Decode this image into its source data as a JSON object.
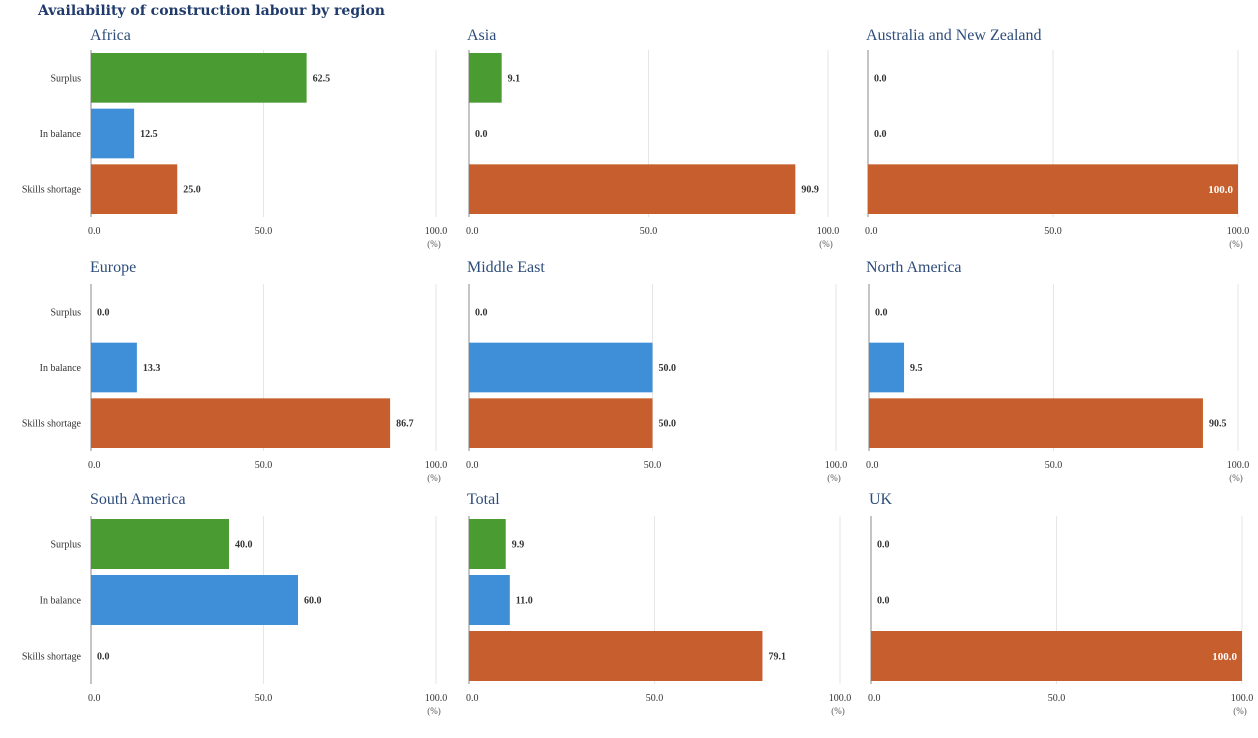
{
  "title": "Availability of construction labour by region",
  "chart_data": [
    {
      "type": "bar",
      "orientation": "horizontal",
      "title": "Africa",
      "categories": [
        "Surplus",
        "In balance",
        "Skills shortage"
      ],
      "values": [
        62.5,
        12.5,
        25.0
      ],
      "xlim": [
        0,
        100
      ],
      "ticks": [
        "0.0",
        "50.0",
        "100.0"
      ],
      "unit": "(%)",
      "show_category_labels": true
    },
    {
      "type": "bar",
      "orientation": "horizontal",
      "title": "Asia",
      "categories": [
        "Surplus",
        "In balance",
        "Skills shortage"
      ],
      "values": [
        9.1,
        0.0,
        90.9
      ],
      "xlim": [
        0,
        100
      ],
      "ticks": [
        "0.0",
        "50.0",
        "100.0"
      ],
      "unit": "(%)",
      "show_category_labels": false
    },
    {
      "type": "bar",
      "orientation": "horizontal",
      "title": "Australia and New Zealand",
      "categories": [
        "Surplus",
        "In balance",
        "Skills shortage"
      ],
      "values": [
        0.0,
        0.0,
        100.0
      ],
      "xlim": [
        0,
        100
      ],
      "ticks": [
        "0.0",
        "50.0",
        "100.0"
      ],
      "unit": "(%)",
      "show_category_labels": false
    },
    {
      "type": "bar",
      "orientation": "horizontal",
      "title": "Europe",
      "categories": [
        "Surplus",
        "In balance",
        "Skills shortage"
      ],
      "values": [
        0.0,
        13.3,
        86.7
      ],
      "xlim": [
        0,
        100
      ],
      "ticks": [
        "0.0",
        "50.0",
        "100.0"
      ],
      "unit": "(%)",
      "show_category_labels": true
    },
    {
      "type": "bar",
      "orientation": "horizontal",
      "title": "Middle East",
      "categories": [
        "Surplus",
        "In balance",
        "Skills shortage"
      ],
      "values": [
        0.0,
        50.0,
        50.0
      ],
      "xlim": [
        0,
        100
      ],
      "ticks": [
        "0.0",
        "50.0",
        "100.0"
      ],
      "unit": "(%)",
      "show_category_labels": false
    },
    {
      "type": "bar",
      "orientation": "horizontal",
      "title": "North America",
      "categories": [
        "Surplus",
        "In balance",
        "Skills shortage"
      ],
      "values": [
        0.0,
        9.5,
        90.5
      ],
      "xlim": [
        0,
        100
      ],
      "ticks": [
        "0.0",
        "50.0",
        "100.0"
      ],
      "unit": "(%)",
      "show_category_labels": false
    },
    {
      "type": "bar",
      "orientation": "horizontal",
      "title": "South America",
      "categories": [
        "Surplus",
        "In balance",
        "Skills shortage"
      ],
      "values": [
        40.0,
        60.0,
        0.0
      ],
      "xlim": [
        0,
        100
      ],
      "ticks": [
        "0.0",
        "50.0",
        "100.0"
      ],
      "unit": "(%)",
      "show_category_labels": true
    },
    {
      "type": "bar",
      "orientation": "horizontal",
      "title": "Total",
      "categories": [
        "Surplus",
        "In balance",
        "Skills shortage"
      ],
      "values": [
        9.9,
        11.0,
        79.1
      ],
      "xlim": [
        0,
        100
      ],
      "ticks": [
        "0.0",
        "50.0",
        "100.0"
      ],
      "unit": "(%)",
      "show_category_labels": false
    },
    {
      "type": "bar",
      "orientation": "horizontal",
      "title": "UK",
      "categories": [
        "Surplus",
        "In balance",
        "Skills shortage"
      ],
      "values": [
        0.0,
        0.0,
        100.0
      ],
      "xlim": [
        0,
        100
      ],
      "ticks": [
        "0.0",
        "50.0",
        "100.0"
      ],
      "unit": "(%)",
      "show_category_labels": false
    }
  ],
  "colors": {
    "surplus": "#4a9b31",
    "in_balance": "#3f8fd8",
    "skills_shortage": "#c65f2d",
    "grid": "#e6e6e6",
    "axis": "#8a8a8a",
    "title": "#2e4d7b"
  }
}
